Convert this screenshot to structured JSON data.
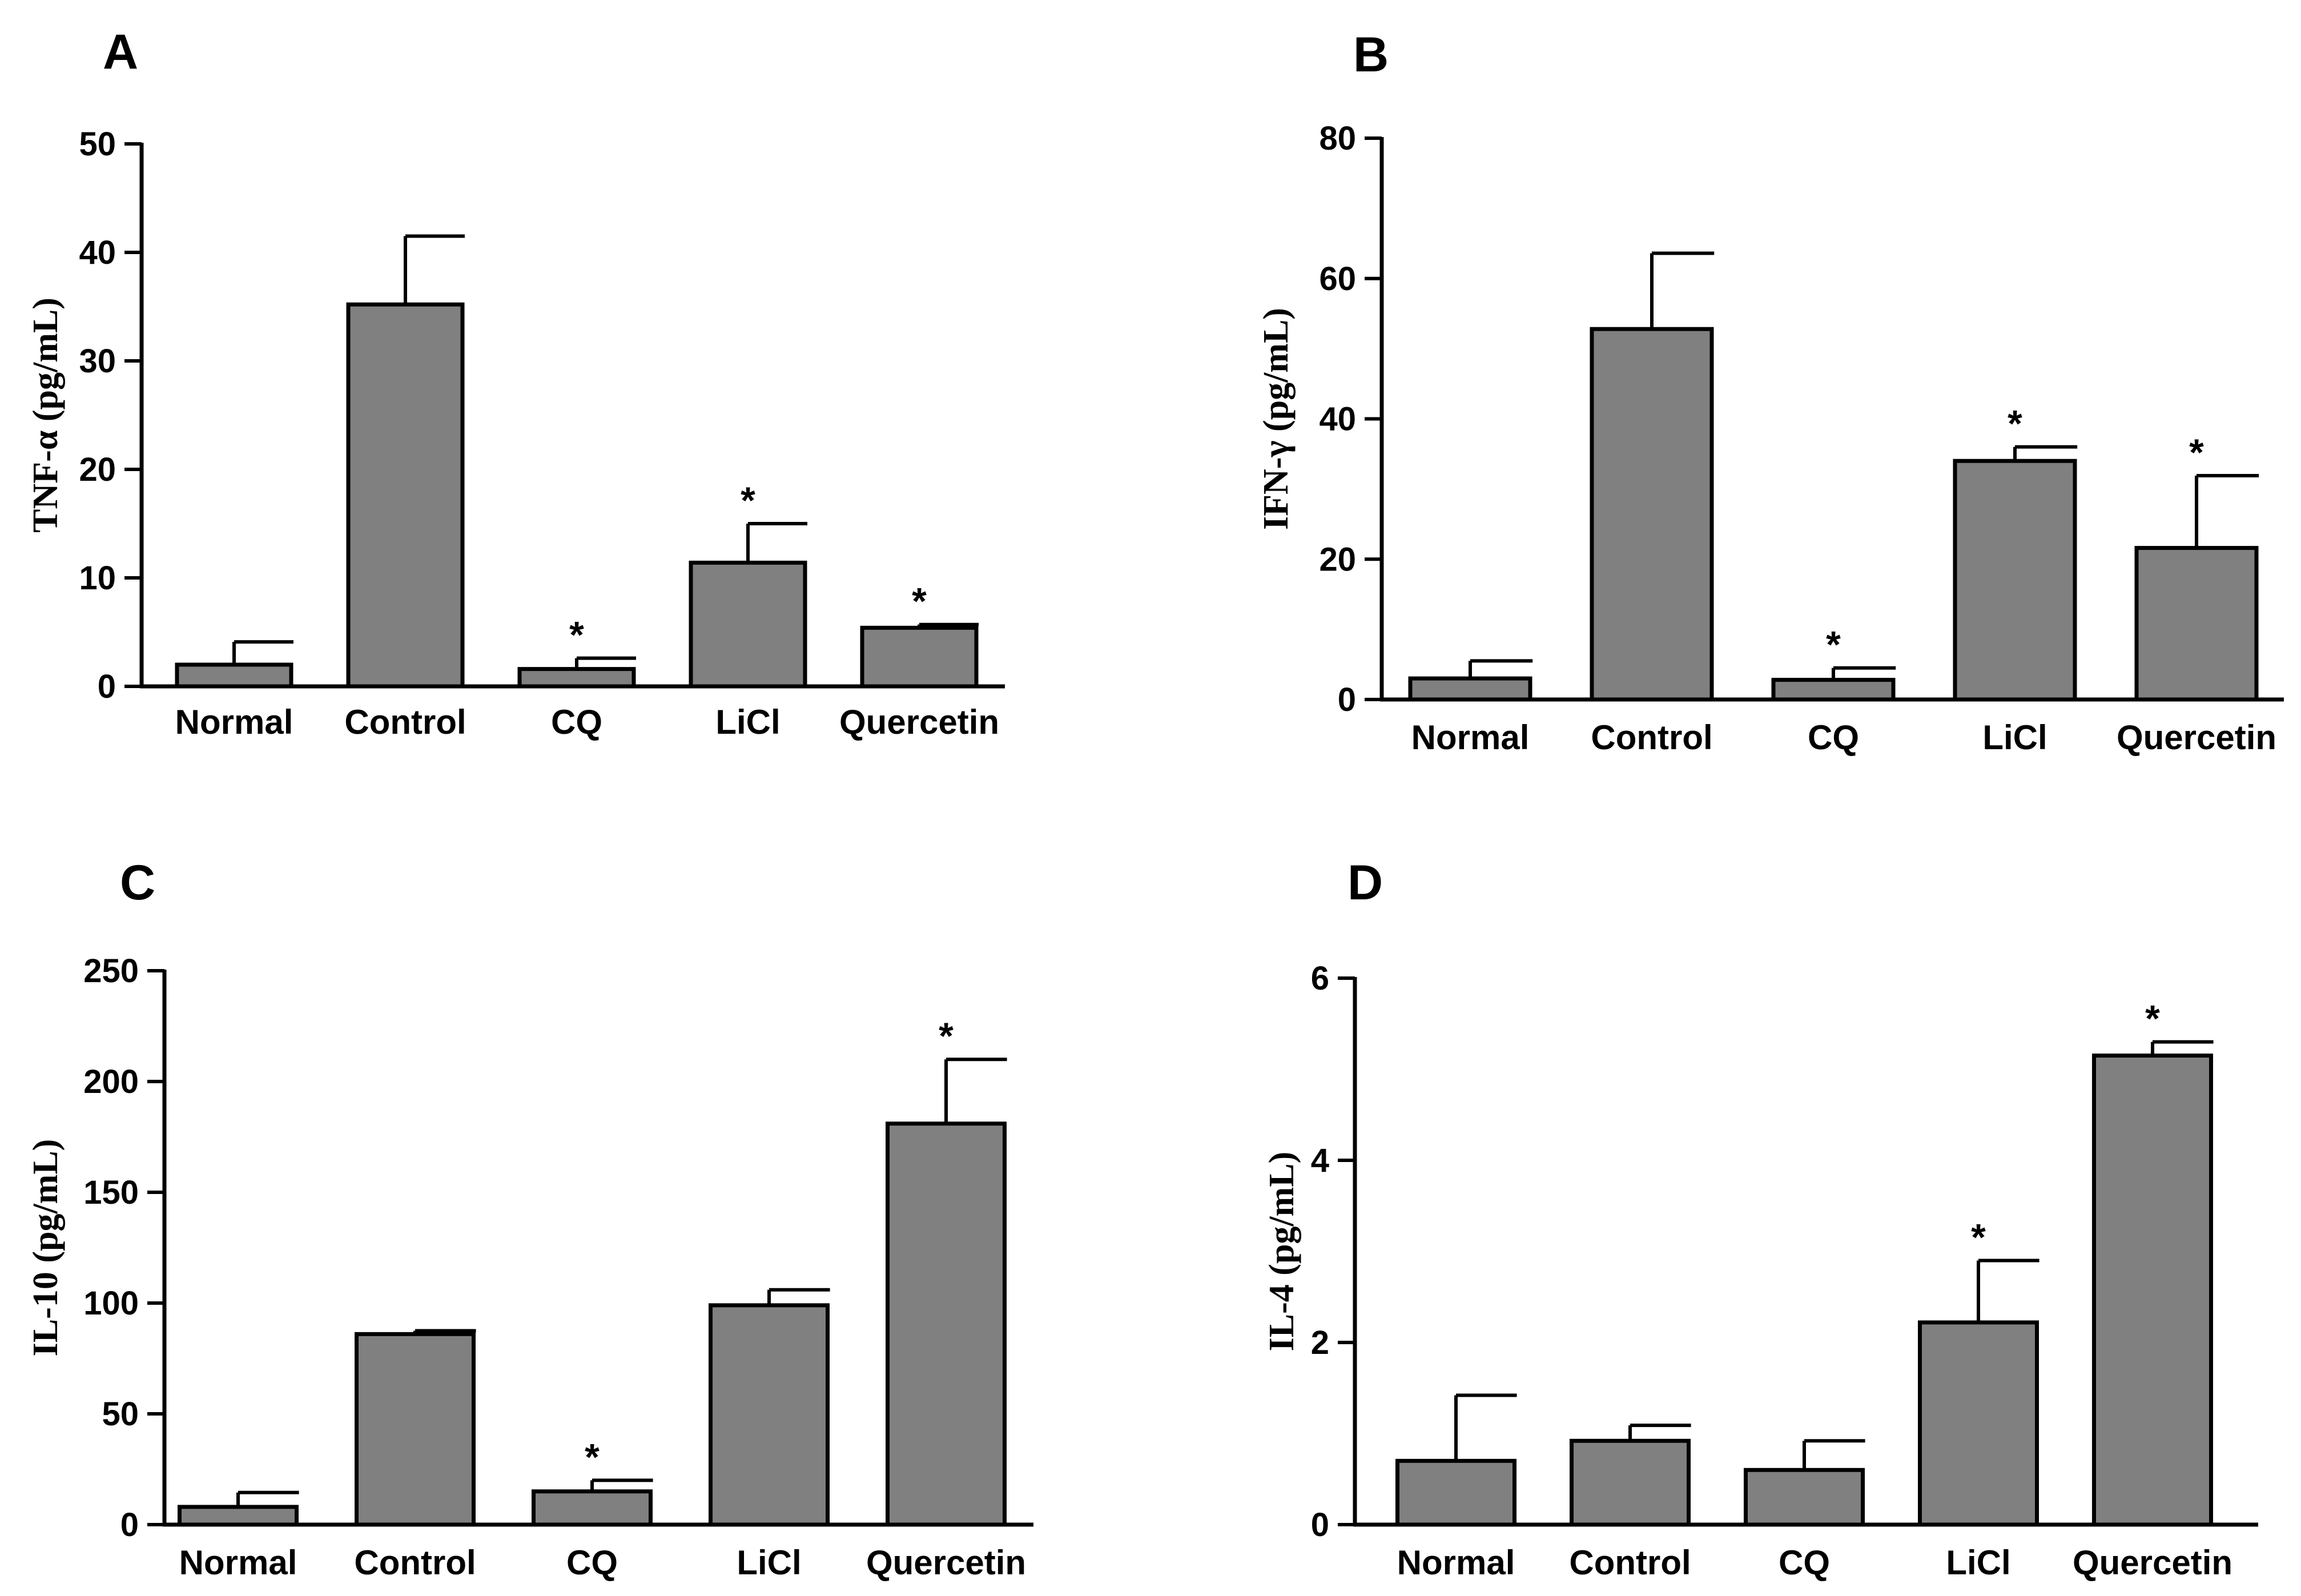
{
  "colors": {
    "bar": "#808080",
    "stroke": "#000000",
    "background": "#ffffff"
  },
  "chart_data": [
    {
      "panel": "A",
      "type": "bar",
      "ylabel": "TNF-α (pg/mL)",
      "ylim": [
        0,
        50
      ],
      "yticks": [
        0,
        10,
        20,
        30,
        40,
        50
      ],
      "categories": [
        "Normal",
        "Control",
        "CQ",
        "LiCl",
        "Quercetin"
      ],
      "values": [
        2.0,
        35.2,
        1.6,
        11.4,
        5.4
      ],
      "errors": [
        2.1,
        6.3,
        1.0,
        3.6,
        0.3
      ],
      "significance": [
        "",
        "",
        "*",
        "*",
        "*"
      ]
    },
    {
      "panel": "B",
      "type": "bar",
      "ylabel": "IFN-γ (pg/mL)",
      "ylim": [
        0,
        80
      ],
      "yticks": [
        0,
        20,
        40,
        60,
        80
      ],
      "categories": [
        "Normal",
        "Control",
        "CQ",
        "LiCl",
        "Quercetin"
      ],
      "values": [
        3.0,
        52.8,
        2.8,
        34.0,
        21.6
      ],
      "errors": [
        2.5,
        10.8,
        1.7,
        2.0,
        10.3
      ],
      "significance": [
        "",
        "",
        "*",
        "*",
        "*"
      ]
    },
    {
      "panel": "C",
      "type": "bar",
      "ylabel": "IL-10 (pg/mL)",
      "ylim": [
        0,
        250
      ],
      "yticks": [
        0,
        50,
        100,
        150,
        200,
        250
      ],
      "categories": [
        "Normal",
        "Control",
        "CQ",
        "LiCl",
        "Quercetin"
      ],
      "values": [
        8.0,
        86.0,
        15.0,
        99.0,
        181.0
      ],
      "errors": [
        6.5,
        1.5,
        5.0,
        7.0,
        29.0
      ],
      "significance": [
        "",
        "",
        "*",
        "",
        "*"
      ]
    },
    {
      "panel": "D",
      "type": "bar",
      "ylabel": "IL-4 (pg/mL)",
      "ylim": [
        0,
        6
      ],
      "yticks": [
        0,
        2,
        4,
        6
      ],
      "categories": [
        "Normal",
        "Control",
        "CQ",
        "LiCl",
        "Quercetin"
      ],
      "values": [
        0.7,
        0.92,
        0.6,
        2.22,
        5.15
      ],
      "errors": [
        0.72,
        0.17,
        0.32,
        0.68,
        0.15
      ],
      "significance": [
        "",
        "",
        "",
        "*",
        "*"
      ]
    }
  ]
}
